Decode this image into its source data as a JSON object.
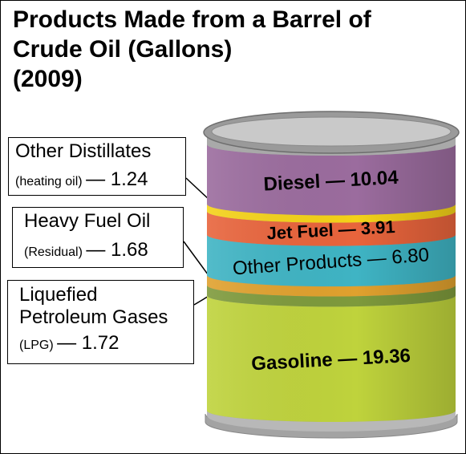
{
  "title_lines": [
    "Products Made from a Barrel of",
    "Crude Oil (Gallons)",
    "(2009)"
  ],
  "callouts": {
    "other_distillates": {
      "name": "Other Distillates",
      "paren": "(heating oil)",
      "value": "— 1.24"
    },
    "heavy_fuel_oil": {
      "name": "Heavy Fuel Oil",
      "paren": "(Residual)",
      "value": "— 1.68"
    },
    "lpg": {
      "name_line1": "Liquefied",
      "name_line2": "Petroleum Gases",
      "paren": "(LPG)",
      "value": "— 1.72"
    }
  },
  "chart_data": {
    "type": "bar",
    "orientation": "stacked-barrel",
    "title": "Products Made from a Barrel of Crude Oil (Gallons) (2009)",
    "unit": "Gallons",
    "segments": [
      {
        "name": "Gasoline",
        "value": 19.36,
        "label": "Gasoline — 19.36",
        "color": "#bfd33c"
      },
      {
        "name": "Liquefied Petroleum Gases (LPG)",
        "value": 1.72,
        "label": "",
        "color": "#7e9a3c"
      },
      {
        "name": "Heavy Fuel Oil (Residual)",
        "value": 1.68,
        "label": "",
        "color": "#e0a12e"
      },
      {
        "name": "Other Products",
        "value": 6.8,
        "label": "Other Products — 6.80",
        "color": "#3fb4c4"
      },
      {
        "name": "Jet Fuel",
        "value": 3.91,
        "label": "Jet Fuel — 3.91",
        "color": "#e8643c"
      },
      {
        "name": "Other Distillates (heating oil)",
        "value": 1.24,
        "label": "",
        "color": "#f4d219"
      },
      {
        "name": "Diesel",
        "value": 10.04,
        "label": "Diesel — 10.04",
        "color": "#9b6c9e"
      }
    ]
  }
}
